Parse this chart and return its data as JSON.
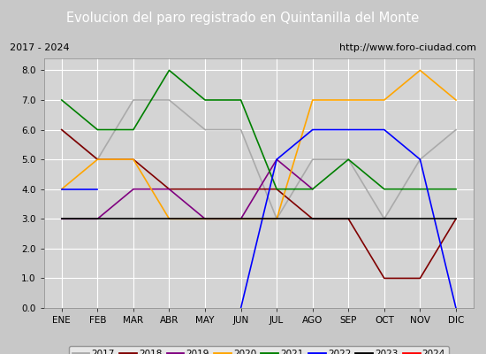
{
  "title": "Evolucion del paro registrado en Quintanilla del Monte",
  "subtitle_left": "2017 - 2024",
  "subtitle_right": "http://www.foro-ciudad.com",
  "months": [
    "ENE",
    "FEB",
    "MAR",
    "ABR",
    "MAY",
    "JUN",
    "JUL",
    "AGO",
    "SEP",
    "OCT",
    "NOV",
    "DIC"
  ],
  "ylim": [
    0.0,
    8.4
  ],
  "yticks": [
    0.0,
    1.0,
    2.0,
    3.0,
    4.0,
    5.0,
    6.0,
    7.0,
    8.0
  ],
  "series": {
    "2017": {
      "color": "#aaaaaa",
      "data": [
        6.0,
        5.0,
        7.0,
        7.0,
        6.0,
        6.0,
        3.0,
        5.0,
        5.0,
        3.0,
        5.0,
        6.0
      ]
    },
    "2018": {
      "color": "#800000",
      "data": [
        6.0,
        5.0,
        5.0,
        4.0,
        4.0,
        4.0,
        4.0,
        3.0,
        3.0,
        1.0,
        1.0,
        3.0
      ]
    },
    "2019": {
      "color": "#800080",
      "data": [
        3.0,
        3.0,
        4.0,
        4.0,
        3.0,
        3.0,
        5.0,
        4.0,
        null,
        null,
        null,
        null
      ]
    },
    "2020": {
      "color": "#ffa500",
      "data": [
        4.0,
        5.0,
        5.0,
        3.0,
        3.0,
        3.0,
        3.0,
        7.0,
        7.0,
        7.0,
        8.0,
        7.0
      ]
    },
    "2021": {
      "color": "#008000",
      "data": [
        7.0,
        6.0,
        6.0,
        8.0,
        7.0,
        7.0,
        4.0,
        4.0,
        5.0,
        4.0,
        4.0,
        4.0
      ]
    },
    "2022": {
      "color": "#0000ff",
      "data": [
        4.0,
        4.0,
        null,
        null,
        null,
        0.0,
        5.0,
        6.0,
        6.0,
        6.0,
        5.0,
        0.0
      ]
    },
    "2023": {
      "color": "#000000",
      "data": [
        3.0,
        3.0,
        3.0,
        3.0,
        3.0,
        3.0,
        3.0,
        3.0,
        3.0,
        3.0,
        3.0,
        3.0
      ]
    },
    "2024": {
      "color": "#ff0000",
      "data": [
        3.0,
        null,
        null,
        null,
        null,
        null,
        null,
        null,
        null,
        null,
        null,
        null
      ]
    }
  },
  "title_bg": "#4a7ab5",
  "title_color": "white",
  "fig_bg": "#c8c8c8",
  "plot_bg": "#d4d4d4",
  "subtitle_box_bg": "#e0e0e0"
}
